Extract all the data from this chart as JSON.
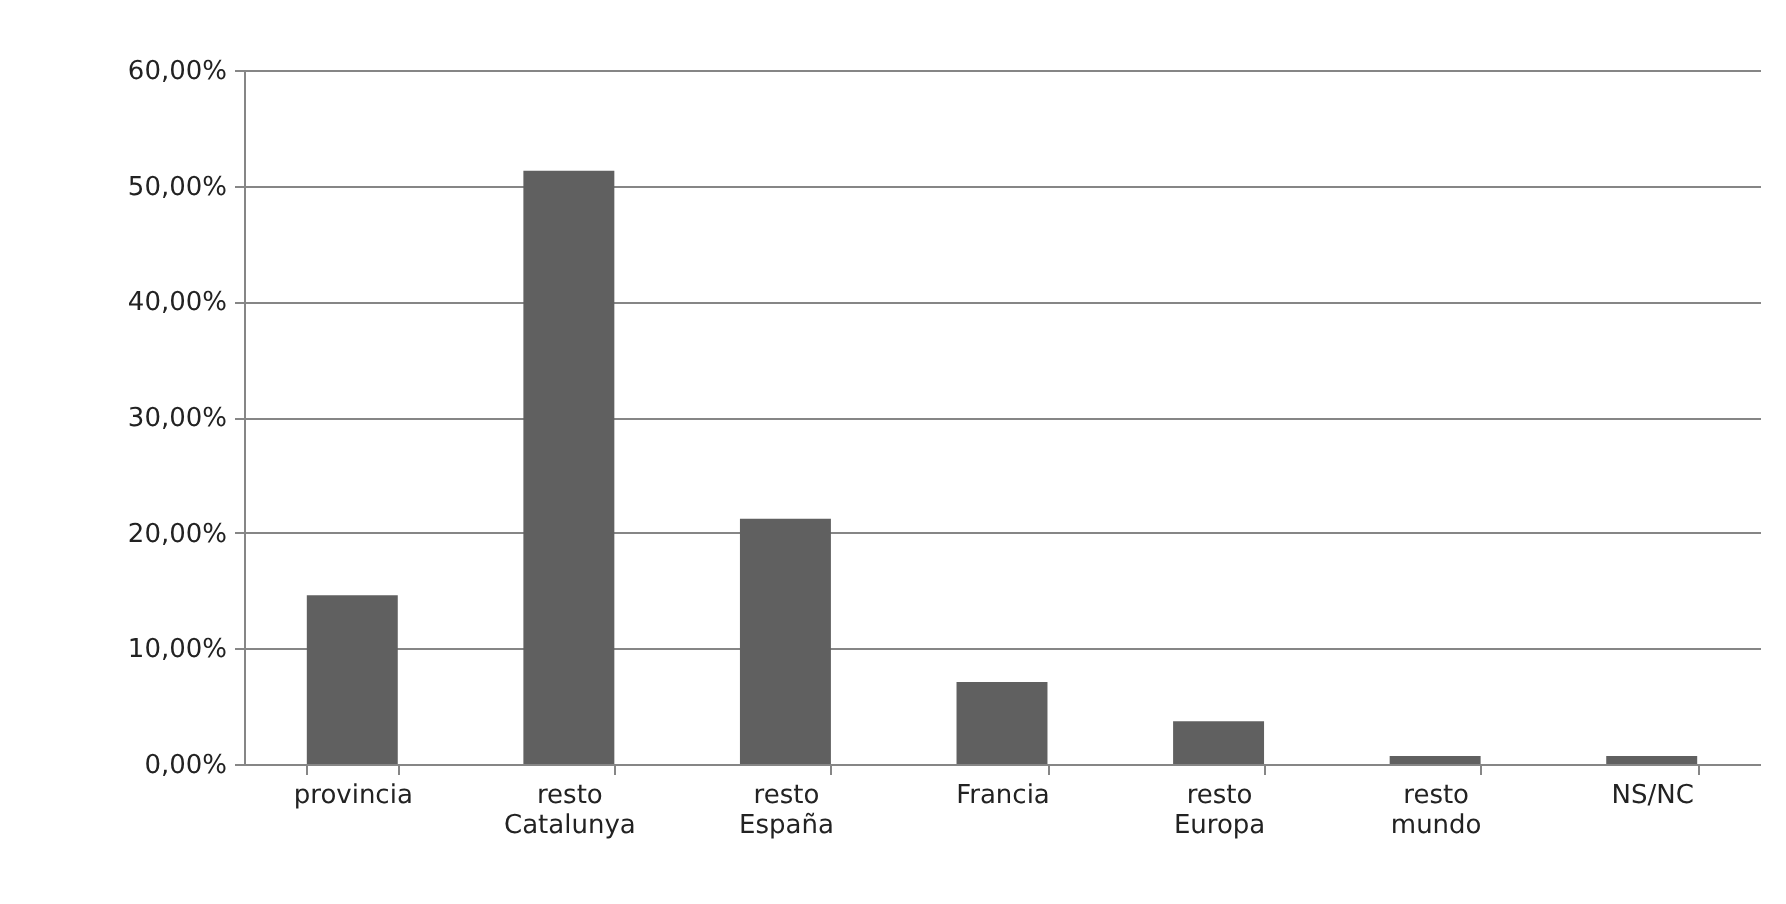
{
  "chart_data": {
    "type": "bar",
    "categories": [
      "provincia",
      "resto Catalunya",
      "resto España",
      "Francia",
      "resto Europa",
      "resto mundo",
      "NS/NC"
    ],
    "values": [
      14.6,
      51.3,
      21.2,
      7.1,
      3.7,
      0.7,
      0.7
    ],
    "color": "#606060",
    "ylim": [
      0,
      60
    ],
    "yticks": [
      {
        "value": 0,
        "label": "0,00%"
      },
      {
        "value": 10,
        "label": "10,00%"
      },
      {
        "value": 20,
        "label": "20,00%"
      },
      {
        "value": 30,
        "label": "30,00%"
      },
      {
        "value": 40,
        "label": "40,00%"
      },
      {
        "value": 50,
        "label": "50,00%"
      },
      {
        "value": 60,
        "label": "60,00%"
      }
    ],
    "grid": "y"
  }
}
